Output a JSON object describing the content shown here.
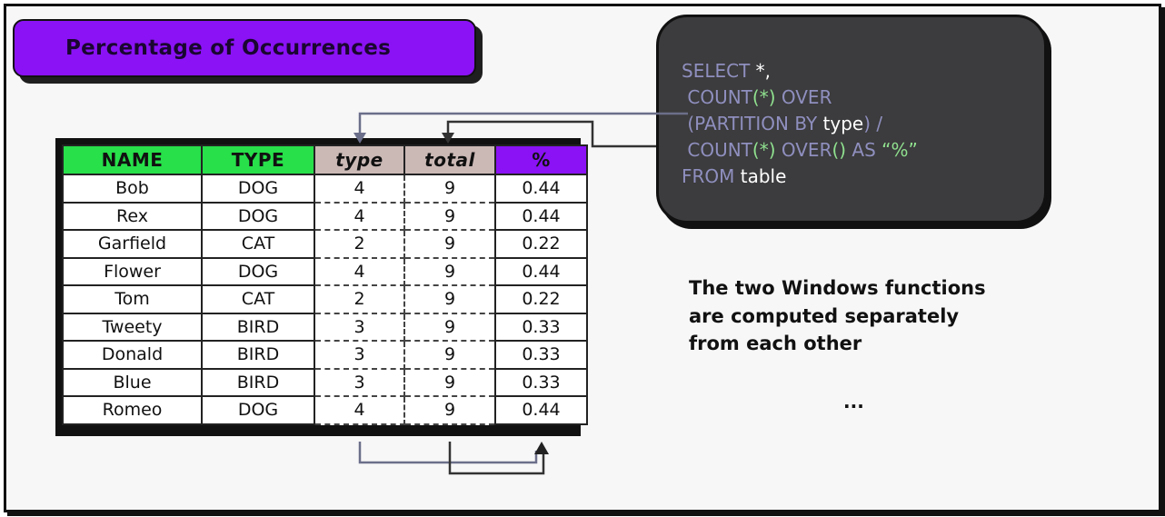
{
  "title": "Percentage of Occurrences",
  "code": {
    "lines": [
      [
        {
          "t": "SELECT ",
          "c": "kw"
        },
        {
          "t": "*,",
          "c": "wh"
        }
      ],
      [
        {
          "t": " COUNT",
          "c": "kw"
        },
        {
          "t": "(*)",
          "c": "gn"
        },
        {
          "t": " OVER",
          "c": "kw"
        }
      ],
      [
        {
          "t": " (PARTITION BY ",
          "c": "kw"
        },
        {
          "t": "type",
          "c": "wh"
        },
        {
          "t": ") /",
          "c": "kw"
        }
      ],
      [
        {
          "t": " COUNT",
          "c": "kw"
        },
        {
          "t": "(*)",
          "c": "gn"
        },
        {
          "t": " OVER",
          "c": "kw"
        },
        {
          "t": "()",
          "c": "gn"
        },
        {
          "t": " AS ",
          "c": "kw"
        },
        {
          "t": "“%”",
          "c": "gn"
        }
      ],
      [
        {
          "t": "FROM ",
          "c": "kw"
        },
        {
          "t": "table",
          "c": "wh"
        }
      ]
    ]
  },
  "table": {
    "headers": [
      "NAME",
      "TYPE",
      "type",
      "total",
      "%"
    ],
    "rows": [
      [
        "Bob",
        "DOG",
        "4",
        "9",
        "0.44"
      ],
      [
        "Rex",
        "DOG",
        "4",
        "9",
        "0.44"
      ],
      [
        "Garfield",
        "CAT",
        "2",
        "9",
        "0.22"
      ],
      [
        "Flower",
        "DOG",
        "4",
        "9",
        "0.44"
      ],
      [
        "Tom",
        "CAT",
        "2",
        "9",
        "0.22"
      ],
      [
        "Tweety",
        "BIRD",
        "3",
        "9",
        "0.33"
      ],
      [
        "Donald",
        "BIRD",
        "3",
        "9",
        "0.33"
      ],
      [
        "Blue",
        "BIRD",
        "3",
        "9",
        "0.33"
      ],
      [
        "Romeo",
        "DOG",
        "4",
        "9",
        "0.44"
      ]
    ]
  },
  "note": {
    "lines": [
      "The two Windows functions",
      "are computed separately",
      "from each other"
    ]
  },
  "ellipsis": "...",
  "colors": {
    "accent_purple": "#8a12f5",
    "header_green": "#27e04a",
    "header_taupe": "#cbb9b6",
    "code_bg": "#3c3b3d",
    "code_keyword": "#8f8fbf",
    "code_paren": "#8fe08f",
    "arrow_gray": "#6b6f8a",
    "arrow_dark": "#333333"
  }
}
